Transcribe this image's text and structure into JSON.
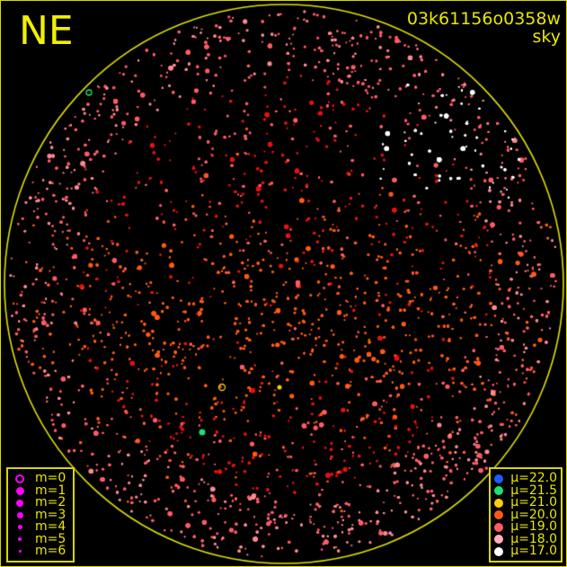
{
  "direction_label": "NE",
  "title": {
    "id": "03k61156o0358w",
    "subtitle": "sky"
  },
  "magnitude_legend": [
    {
      "label": "m=0",
      "style": "ring"
    },
    {
      "label": "m=1"
    },
    {
      "label": "m=2"
    },
    {
      "label": "m=3"
    },
    {
      "label": "m=4"
    },
    {
      "label": "m=5"
    },
    {
      "label": "m=6"
    }
  ],
  "magnitude_color": "#ff00ff",
  "brightness_legend": [
    {
      "label": "μ=22.0",
      "color": "#1e5cff"
    },
    {
      "label": "μ=21.5",
      "color": "#1ee070"
    },
    {
      "label": "μ=21.0",
      "color": "#ffd000"
    },
    {
      "label": "μ=20.0",
      "color": "#ff5a10"
    },
    {
      "label": "μ=19.0",
      "color": "#ff5a64"
    },
    {
      "label": "μ=18.0",
      "color": "#ffb0c0"
    },
    {
      "label": "μ=17.0",
      "color": "#ffffff"
    }
  ],
  "horizon_color": "#e0e000"
}
